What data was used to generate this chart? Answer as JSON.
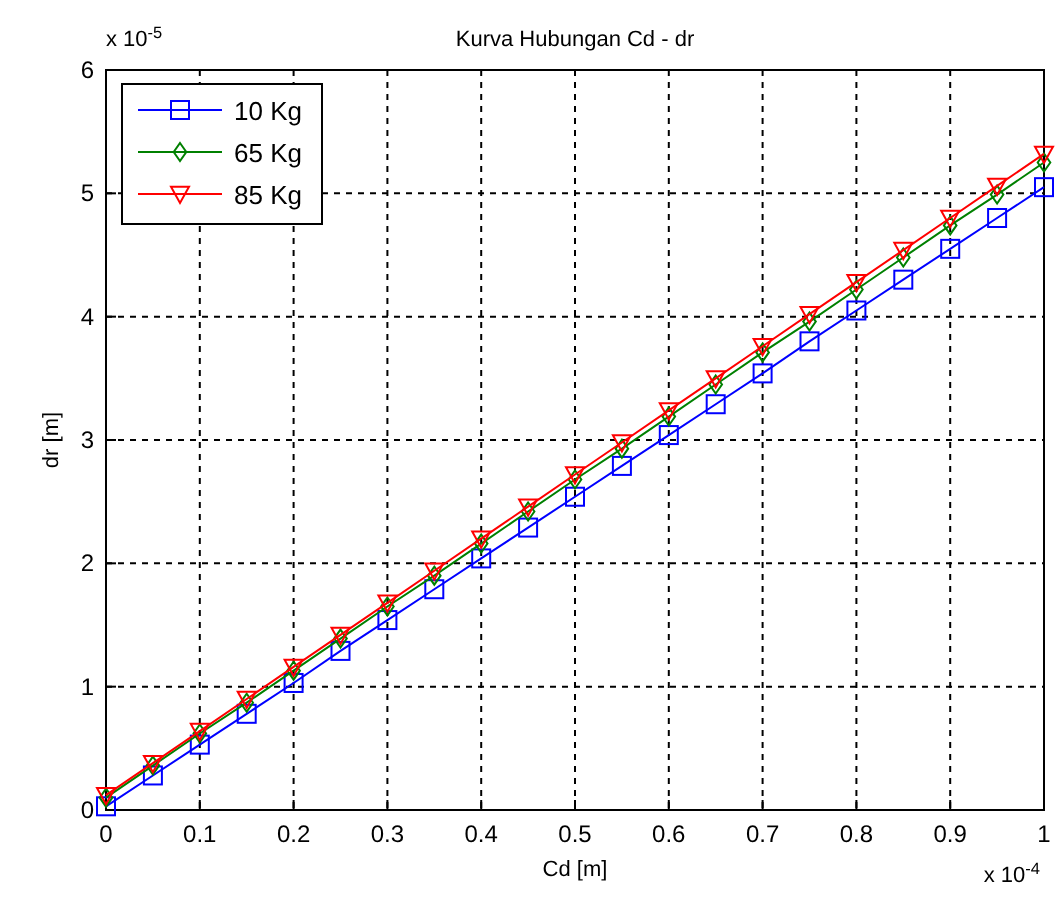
{
  "chart_data": {
    "type": "line",
    "title": "Kurva Hubungan Cd - dr",
    "xlabel": "Cd [m]",
    "ylabel": "dr [m]",
    "annotations": [
      "x 10$^{-5}$",
      "x 10$^{-4}$"
    ],
    "x": [
      0,
      0.05,
      0.1,
      0.15,
      0.2,
      0.25,
      0.3,
      0.35,
      0.4,
      0.45,
      0.5,
      0.55,
      0.6,
      0.65,
      0.7,
      0.75,
      0.8,
      0.85,
      0.9,
      0.95,
      1
    ],
    "series": [
      {
        "name": "10 Kg",
        "color": "#0000ff",
        "marker": "square",
        "values": [
          0.03,
          0.28,
          0.53,
          0.78,
          1.03,
          1.29,
          1.54,
          1.79,
          2.04,
          2.29,
          2.54,
          2.79,
          3.04,
          3.29,
          3.54,
          3.8,
          4.05,
          4.3,
          4.55,
          4.8,
          5.05
        ]
      },
      {
        "name": "65 Kg",
        "color": "#008000",
        "marker": "diamond",
        "values": [
          0.1,
          0.36,
          0.62,
          0.87,
          1.13,
          1.39,
          1.65,
          1.9,
          2.16,
          2.42,
          2.68,
          2.93,
          3.19,
          3.45,
          3.71,
          3.96,
          4.22,
          4.48,
          4.74,
          4.99,
          5.25
        ]
      },
      {
        "name": "85 Kg",
        "color": "#ff0000",
        "marker": "triangle",
        "values": [
          0.12,
          0.38,
          0.64,
          0.9,
          1.16,
          1.42,
          1.68,
          1.94,
          2.2,
          2.46,
          2.72,
          2.98,
          3.24,
          3.5,
          3.76,
          4.02,
          4.28,
          4.54,
          4.8,
          5.06,
          5.32
        ]
      }
    ],
    "xlim": [
      0,
      1
    ],
    "ylim": [
      0,
      6
    ],
    "xticks": [
      0,
      0.1,
      0.2,
      0.3,
      0.4,
      0.5,
      0.6,
      0.7,
      0.8,
      0.9,
      1
    ],
    "yticks": [
      0,
      1,
      2,
      3,
      4,
      5,
      6
    ],
    "grid": true,
    "legend": "top left",
    "line_style": "solid"
  }
}
